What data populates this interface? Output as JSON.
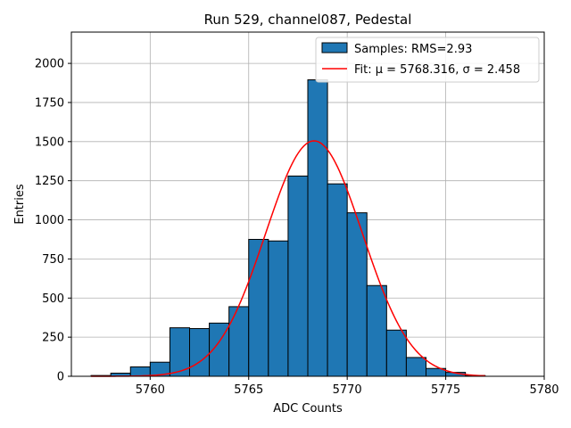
{
  "chart_data": {
    "type": "bar",
    "title": "Run 529, channel087, Pedestal",
    "xlabel": "ADC Counts",
    "ylabel": "Entries",
    "xlim": [
      5756,
      5780
    ],
    "ylim": [
      0,
      2200
    ],
    "xticks": [
      5760,
      5765,
      5770,
      5775,
      5780
    ],
    "yticks": [
      0,
      250,
      500,
      750,
      1000,
      1250,
      1500,
      1750,
      2000
    ],
    "grid": true,
    "legend_position": "top-right",
    "bar_color": "#1f77b4",
    "fit_color": "#ff0000",
    "histogram": {
      "name": "Samples: RMS=2.93",
      "bin_edges": [
        5757,
        5758,
        5759,
        5760,
        5761,
        5762,
        5763,
        5764,
        5765,
        5766,
        5767,
        5768,
        5769,
        5770,
        5771,
        5772,
        5773,
        5774,
        5775,
        5776,
        5777
      ],
      "counts": [
        5,
        20,
        60,
        90,
        310,
        305,
        340,
        445,
        875,
        865,
        1280,
        1895,
        1230,
        1045,
        580,
        295,
        120,
        50,
        25,
        5
      ]
    },
    "fit": {
      "name": "Fit: μ = 5768.316, σ = 2.458",
      "mu": 5768.316,
      "sigma": 2.458,
      "amplitude": 1505,
      "x_range": [
        5757,
        5777
      ]
    }
  }
}
